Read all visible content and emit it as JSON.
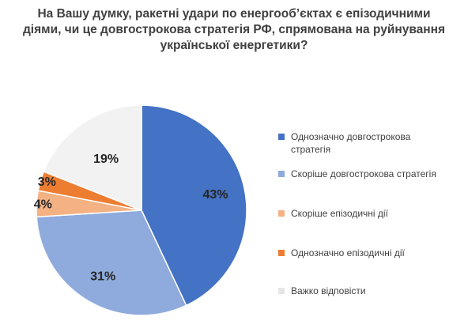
{
  "title_lines": [
    "На Вашу думку, ракетні удари по енергооб’єктах є епізодичними",
    "діями, чи це довгострокова стратегія РФ, спрямована на руйнування",
    "української енергетики?"
  ],
  "chart_data": {
    "type": "pie",
    "title": "На Вашу думку, ракетні удари по енергооб’єктах є епізодичними діями, чи це довгострокова стратегія РФ, спрямована на руйнування української енергетики?",
    "unit": "%",
    "slices": [
      {
        "label": "Однозначно довгострокова стратегія",
        "value": 43,
        "display": "43%",
        "color": "#4472C4"
      },
      {
        "label": "Скоріше довгострокова стратегія",
        "value": 31,
        "display": "31%",
        "color": "#8FAADC"
      },
      {
        "label": "Скоріше епізодичні дії",
        "value": 4,
        "display": "4%",
        "color": "#F4B183"
      },
      {
        "label": "Однозначно епізодичні дії",
        "value": 3,
        "display": "3%",
        "color": "#ED7D31"
      },
      {
        "label": "Важко відповісти",
        "value": 19,
        "display": "19%",
        "color": "#F2F2F2"
      }
    ],
    "legend_position": "right"
  }
}
